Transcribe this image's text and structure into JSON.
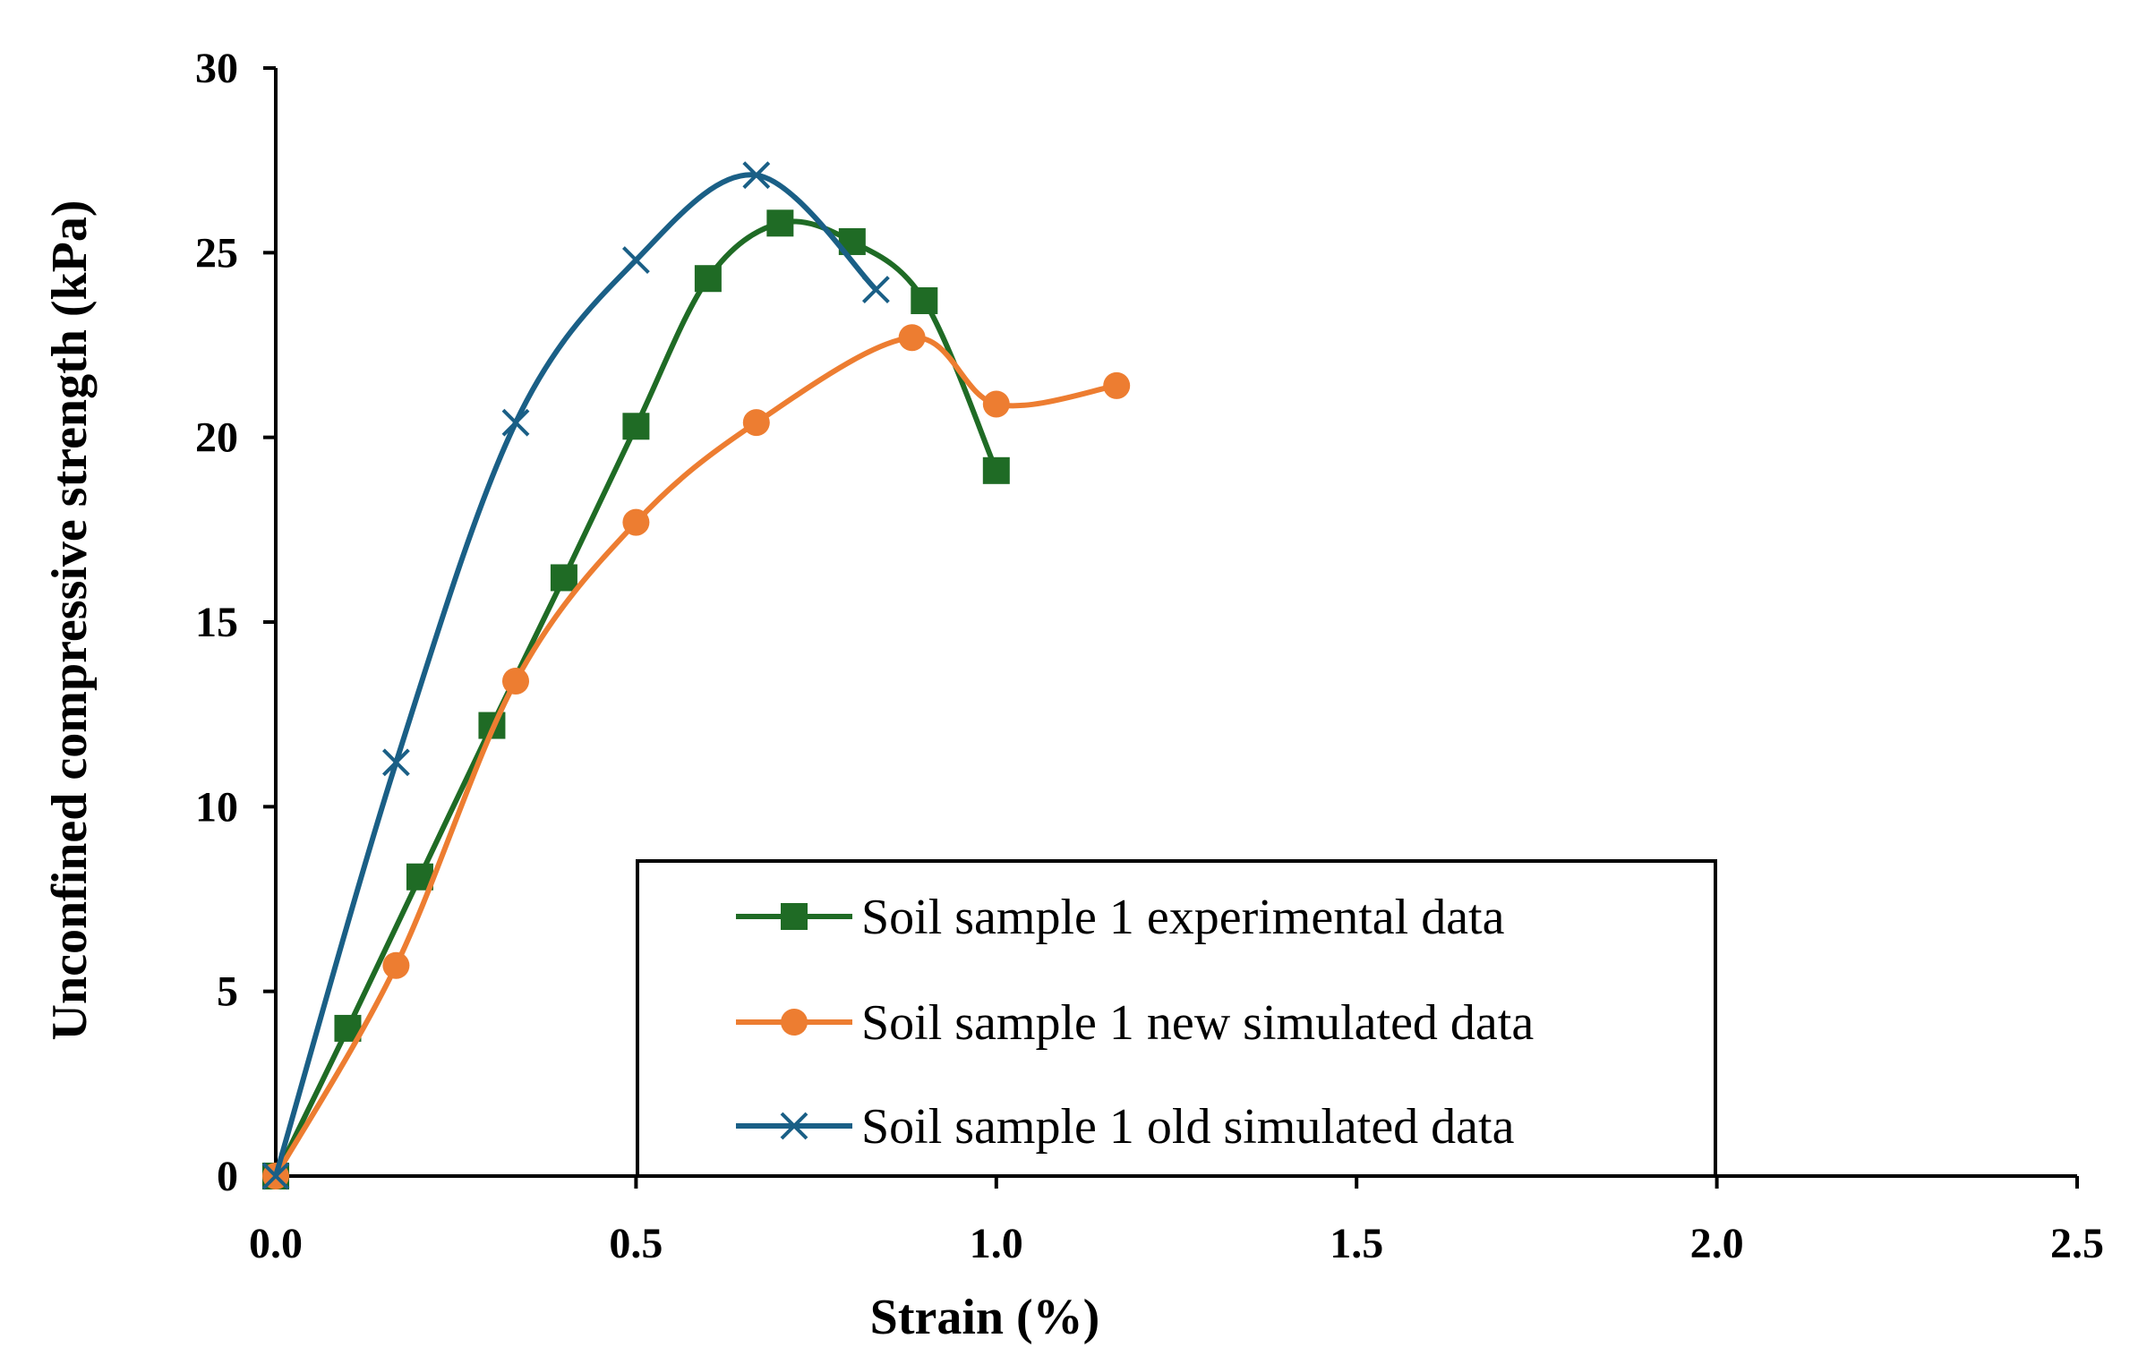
{
  "chart_data": {
    "type": "line",
    "title": "",
    "xlabel": "Strain (%)",
    "ylabel": "Unconfined compressive strength (kPa)",
    "xlim": [
      0,
      2.5
    ],
    "ylim": [
      0,
      30
    ],
    "x_ticks": [
      "0.0",
      "0.5",
      "1.0",
      "1.5",
      "2.0",
      "2.5"
    ],
    "y_ticks": [
      "0",
      "5",
      "10",
      "15",
      "20",
      "25",
      "30"
    ],
    "grid": false,
    "legend_position": "bottom-center",
    "series": [
      {
        "name": "Soil sample 1 experimental data",
        "color": "#1f6b25",
        "marker": "square",
        "x": [
          0,
          0.1,
          0.2,
          0.3,
          0.4,
          0.5,
          0.6,
          0.7,
          0.8,
          0.9,
          1.0
        ],
        "y": [
          0,
          4.0,
          8.1,
          12.2,
          16.2,
          20.3,
          24.3,
          25.8,
          25.3,
          23.7,
          19.1
        ]
      },
      {
        "name": "Soil sample 1 new simulated data",
        "color": "#ed7d31",
        "marker": "circle",
        "x": [
          0,
          0.167,
          0.333,
          0.5,
          0.667,
          0.883,
          1.0,
          1.167
        ],
        "y": [
          0,
          5.7,
          13.4,
          17.7,
          20.4,
          22.7,
          20.9,
          21.4
        ]
      },
      {
        "name": "Soil sample 1 old simulated data",
        "color": "#1a5f86",
        "marker": "x",
        "x": [
          0,
          0.167,
          0.333,
          0.5,
          0.667,
          0.833
        ],
        "y": [
          0,
          11.2,
          20.4,
          24.8,
          27.1,
          24.0
        ]
      }
    ]
  }
}
